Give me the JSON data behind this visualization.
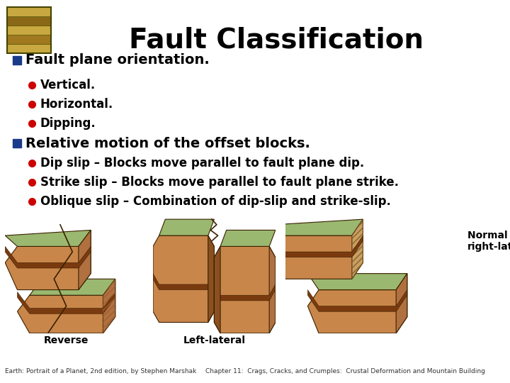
{
  "title": "Fault Classification",
  "title_fontsize": 28,
  "title_fontweight": "bold",
  "title_color": "#000000",
  "background_color": "#ffffff",
  "bullet1_marker_color": "#1a3a8a",
  "bullet_red_color": "#cc0000",
  "text_color": "#000000",
  "bullet1_text": "Fault plane orientation.",
  "bullet1_fontsize": 14,
  "bullet1_fontweight": "bold",
  "sub_bullets_1": [
    "Vertical.",
    "Horizontal.",
    "Dipping."
  ],
  "bullet2_text": "Relative motion of the offset blocks.",
  "bullet2_fontsize": 14,
  "sub_bullets_2": [
    "Dip slip – Blocks move parallel to fault plane dip.",
    "Strike slip – Blocks move parallel to fault plane strike.",
    "Oblique slip – Combination of dip-slip and strike-slip."
  ],
  "sub_bullet_fontsize": 12,
  "caption_left": "Earth: Portrait of a Planet, 2nd edition, by Stephen Marshak",
  "caption_right": "Chapter 11:  Crags, Cracks, and Crumples:  Crustal Deformation and Mountain Building",
  "caption_fontsize": 6.5,
  "image_labels": [
    "Reverse",
    "Left-lateral",
    "Normal plus\nright-lateral"
  ],
  "image_label_fontsize": 10,
  "image_label_fontweight": "bold",
  "block_face_color": "#c8864a",
  "block_top_color": "#9ab870",
  "block_side_color": "#b07040",
  "block_band_color": "#7a3a10",
  "block_edge_color": "#3a2000",
  "block_hatch_color": "#c8a060"
}
